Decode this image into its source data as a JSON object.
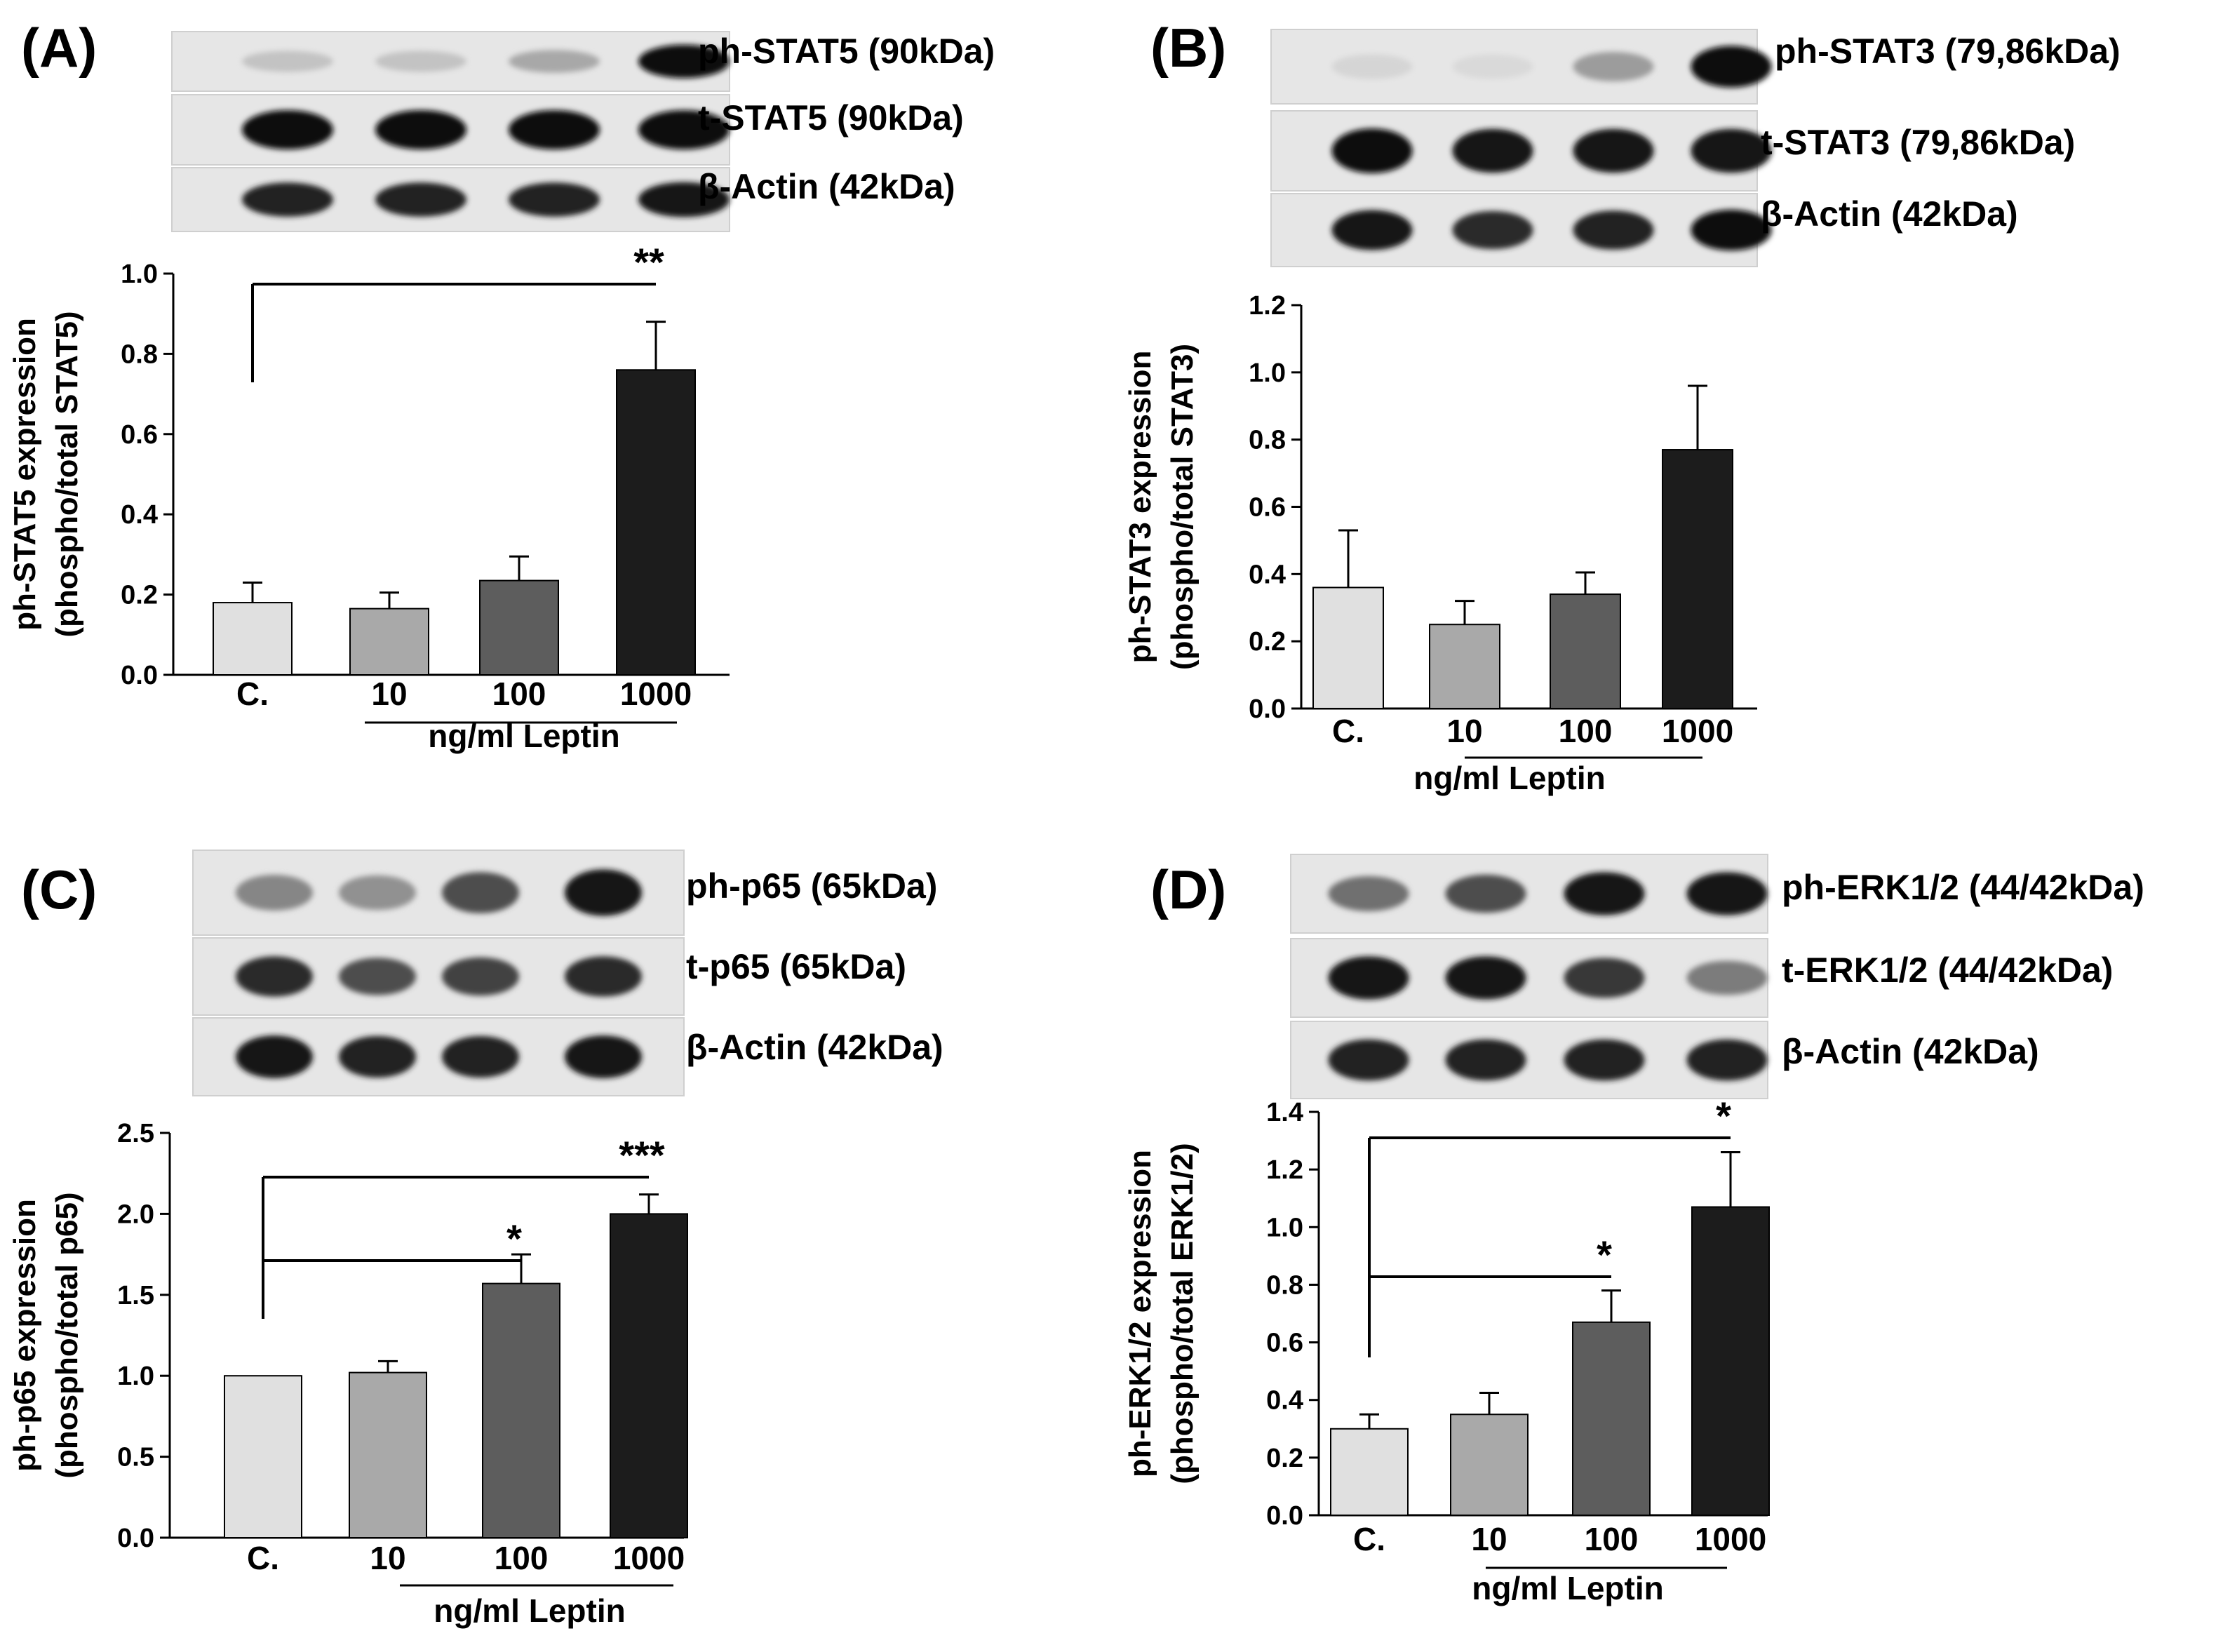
{
  "panels": [
    {
      "label": "(A)",
      "blot_labels": [
        "ph-STAT5 (90kDa)",
        "t-STAT5 (90kDa)",
        "β-Actin (42kDa)"
      ],
      "blot_intensity": [
        [
          0.18,
          0.18,
          0.3,
          1.0
        ],
        [
          1.0,
          1.0,
          1.0,
          1.0
        ],
        [
          0.9,
          0.9,
          0.9,
          0.95
        ]
      ]
    },
    {
      "label": "(B)",
      "blot_labels": [
        "ph-STAT3 (79,86kDa)",
        "t-STAT3 (79,86kDa)",
        "β-Actin (42kDa)"
      ],
      "blot_intensity": [
        [
          0.1,
          0.08,
          0.35,
          1.0
        ],
        [
          1.0,
          0.95,
          0.95,
          0.95
        ],
        [
          0.95,
          0.85,
          0.9,
          1.0
        ]
      ]
    },
    {
      "label": "(C)",
      "blot_labels": [
        "ph-p65 (65kDa)",
        "t-p65 (65kDa)",
        "β-Actin (42kDa)"
      ],
      "blot_intensity": [
        [
          0.45,
          0.4,
          0.7,
          0.95
        ],
        [
          0.85,
          0.7,
          0.75,
          0.85
        ],
        [
          0.95,
          0.9,
          0.9,
          0.95
        ]
      ]
    },
    {
      "label": "(D)",
      "blot_labels": [
        "ph-ERK1/2 (44/42kDa)",
        "t-ERK1/2 (44/42kDa)",
        "β-Actin (42kDa)"
      ],
      "blot_intensity": [
        [
          0.55,
          0.7,
          0.95,
          0.95
        ],
        [
          0.95,
          0.95,
          0.8,
          0.5
        ],
        [
          0.9,
          0.9,
          0.9,
          0.9
        ]
      ]
    }
  ],
  "chart_data": [
    {
      "type": "bar",
      "panel": "(A)",
      "categories": [
        "C.",
        "10",
        "100",
        "1000"
      ],
      "values": [
        0.18,
        0.165,
        0.235,
        0.76
      ],
      "errors": [
        0.05,
        0.04,
        0.06,
        0.12
      ],
      "bar_colors": [
        "#e0e0e0",
        "#a9a9a9",
        "#5d5d5d",
        "#1c1c1c"
      ],
      "ylabel": [
        "ph-STAT5 expression",
        "(phospho/total STAT5)"
      ],
      "xlabel": "ng/ml Leptin",
      "ylim": [
        0,
        1.0
      ],
      "yticks": [
        "0.0",
        "0.2",
        "0.4",
        "0.6",
        "0.8",
        "1.0"
      ],
      "significance": [
        {
          "from": 0,
          "to": 3,
          "label": "**"
        }
      ]
    },
    {
      "type": "bar",
      "panel": "(B)",
      "categories": [
        "C.",
        "10",
        "100",
        "1000"
      ],
      "values": [
        0.36,
        0.25,
        0.34,
        0.77
      ],
      "errors": [
        0.17,
        0.07,
        0.065,
        0.19
      ],
      "bar_colors": [
        "#e0e0e0",
        "#a9a9a9",
        "#5d5d5d",
        "#1c1c1c"
      ],
      "ylabel": [
        "ph-STAT3 expression",
        "(phospho/total STAT3)"
      ],
      "xlabel": "ng/ml Leptin",
      "ylim": [
        0,
        1.2
      ],
      "yticks": [
        "0.0",
        "0.2",
        "0.4",
        "0.6",
        "0.8",
        "1.0",
        "1.2"
      ],
      "significance": []
    },
    {
      "type": "bar",
      "panel": "(C)",
      "categories": [
        "C.",
        "10",
        "100",
        "1000"
      ],
      "values": [
        1.0,
        1.02,
        1.57,
        2.0
      ],
      "errors": [
        0.0,
        0.07,
        0.18,
        0.12
      ],
      "bar_colors": [
        "#e0e0e0",
        "#a9a9a9",
        "#5d5d5d",
        "#1c1c1c"
      ],
      "ylabel": [
        "ph-p65 expression",
        "(phospho/total p65)"
      ],
      "xlabel": "ng/ml Leptin",
      "ylim": [
        0,
        2.5
      ],
      "yticks": [
        "0.0",
        "0.5",
        "1.0",
        "1.5",
        "2.0",
        "2.5"
      ],
      "significance": [
        {
          "from": 0,
          "to": 2,
          "label": "*"
        },
        {
          "from": 0,
          "to": 3,
          "label": "***"
        }
      ]
    },
    {
      "type": "bar",
      "panel": "(D)",
      "categories": [
        "C.",
        "10",
        "100",
        "1000"
      ],
      "values": [
        0.3,
        0.35,
        0.67,
        1.07
      ],
      "errors": [
        0.05,
        0.075,
        0.11,
        0.19
      ],
      "bar_colors": [
        "#e0e0e0",
        "#a9a9a9",
        "#5d5d5d",
        "#1c1c1c"
      ],
      "ylabel": [
        "ph-ERK1/2 expression",
        "(phospho/total ERK1/2)"
      ],
      "xlabel": "ng/ml Leptin",
      "ylim": [
        0,
        1.4
      ],
      "yticks": [
        "0.0",
        "0.2",
        "0.4",
        "0.6",
        "0.8",
        "1.0",
        "1.2",
        "1.4"
      ],
      "significance": [
        {
          "from": 0,
          "to": 2,
          "label": "*"
        },
        {
          "from": 0,
          "to": 3,
          "label": "*"
        }
      ]
    }
  ]
}
